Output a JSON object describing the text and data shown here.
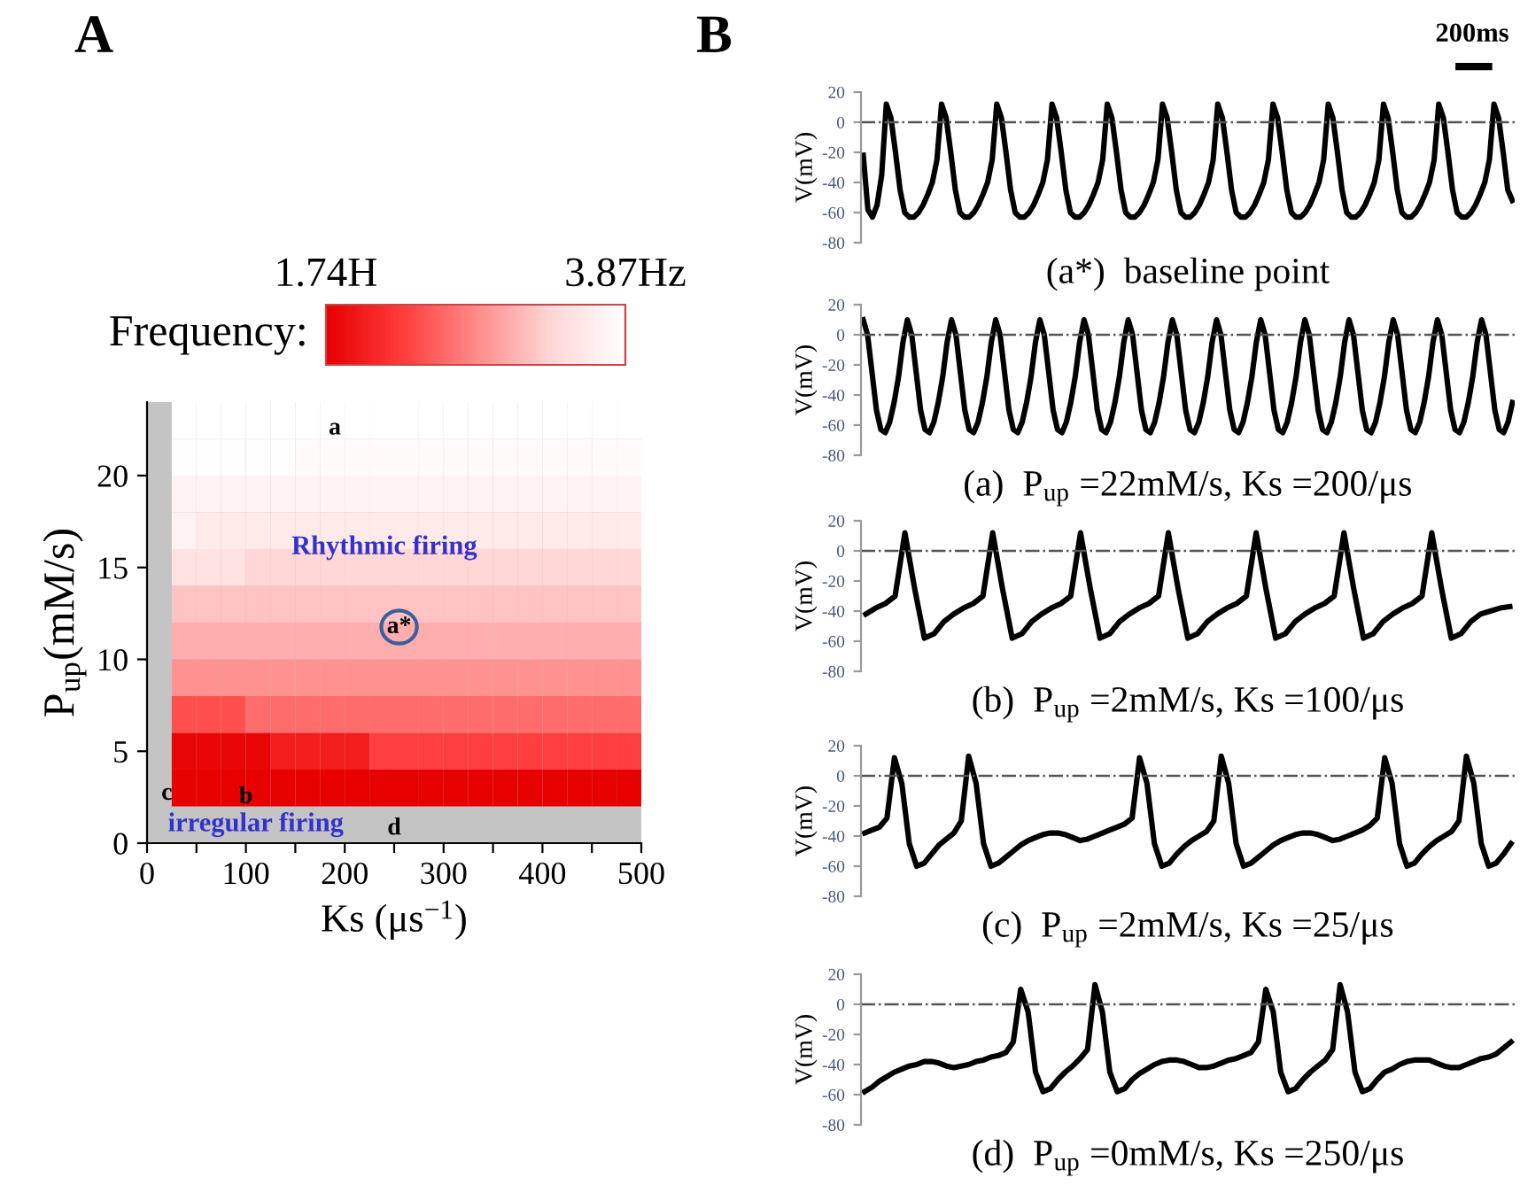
{
  "chart_data": [
    {
      "type": "heatmap",
      "title": "A",
      "xlabel": "Ks (μs$^{−1}$)",
      "ylabel": "P$_{up}$(mM/s)",
      "clabel": "Frequency:",
      "x": [
        37.5,
        62.5,
        87.5,
        112.5,
        137.5,
        162.5,
        187.5,
        212.5,
        237.5,
        262.5,
        287.5,
        312.5,
        337.5,
        362.5,
        387.5,
        412.5,
        437.5,
        462.5,
        487.5
      ],
      "y": [
        23,
        21,
        19,
        17,
        15,
        13,
        11,
        9,
        7,
        5,
        3
      ],
      "cells": [
        [
          3.87,
          3.87,
          3.87,
          3.87,
          3.87,
          3.87,
          3.87,
          3.87,
          3.87,
          3.87,
          3.87,
          3.87,
          3.87,
          3.87,
          3.87,
          3.87,
          3.87,
          3.87,
          3.87
        ],
        [
          3.85,
          3.85,
          3.85,
          3.85,
          3.85,
          3.82,
          3.82,
          3.82,
          3.82,
          3.82,
          3.82,
          3.82,
          3.82,
          3.82,
          3.82,
          3.82,
          3.82,
          3.82,
          3.82
        ],
        [
          3.72,
          3.72,
          3.72,
          3.72,
          3.72,
          3.72,
          3.72,
          3.72,
          3.72,
          3.72,
          3.72,
          3.72,
          3.72,
          3.72,
          3.72,
          3.72,
          3.72,
          3.72,
          3.72
        ],
        [
          3.7,
          3.6,
          3.6,
          3.6,
          3.6,
          3.6,
          3.6,
          3.6,
          3.6,
          3.6,
          3.6,
          3.6,
          3.6,
          3.6,
          3.6,
          3.6,
          3.6,
          3.6,
          3.6
        ],
        [
          3.5,
          3.5,
          3.5,
          3.35,
          3.35,
          3.35,
          3.35,
          3.35,
          3.35,
          3.35,
          3.35,
          3.35,
          3.35,
          3.35,
          3.35,
          3.35,
          3.35,
          3.35,
          3.35
        ],
        [
          3.2,
          3.2,
          3.2,
          3.2,
          3.2,
          3.2,
          3.2,
          3.2,
          3.2,
          3.2,
          3.2,
          3.2,
          3.2,
          3.2,
          3.2,
          3.2,
          3.2,
          3.2,
          3.2
        ],
        [
          3.05,
          3.05,
          3.05,
          3.05,
          3.05,
          3.05,
          3.05,
          3.05,
          3.05,
          3.05,
          3.05,
          3.05,
          3.05,
          3.05,
          3.05,
          3.05,
          3.05,
          3.05,
          3.05
        ],
        [
          2.85,
          2.85,
          2.85,
          2.85,
          2.85,
          2.85,
          2.85,
          2.85,
          2.85,
          2.85,
          2.85,
          2.85,
          2.85,
          2.85,
          2.85,
          2.85,
          2.85,
          2.85,
          2.85
        ],
        [
          2.4,
          2.4,
          2.4,
          2.6,
          2.6,
          2.6,
          2.6,
          2.6,
          2.6,
          2.6,
          2.6,
          2.6,
          2.6,
          2.6,
          2.6,
          2.6,
          2.6,
          2.6,
          2.6
        ],
        [
          1.8,
          1.8,
          1.8,
          1.8,
          2.0,
          2.0,
          2.0,
          2.0,
          2.3,
          2.3,
          2.3,
          2.3,
          2.3,
          2.3,
          2.3,
          2.3,
          2.3,
          2.3,
          2.3
        ],
        [
          1.76,
          1.74,
          1.74,
          1.74,
          1.74,
          1.74,
          1.74,
          1.74,
          1.74,
          1.74,
          1.74,
          1.74,
          1.74,
          1.74,
          1.74,
          1.74,
          1.74,
          1.74,
          1.74
        ]
      ],
      "clim": [
        1.74,
        3.87
      ],
      "cticks": [
        {
          "value": 1.74,
          "label": "1.74H"
        },
        {
          "value": 3.87,
          "label": "3.87Hz"
        }
      ],
      "xlim": [
        0,
        500
      ],
      "ylim": [
        0,
        24
      ],
      "xticks": [
        0,
        {
          "value": 50,
          "label": null
        },
        100,
        {
          "value": 150,
          "label": null
        },
        200,
        {
          "value": 250,
          "label": null
        },
        300,
        {
          "value": 350,
          "label": null
        },
        400,
        {
          "value": 450,
          "label": null
        },
        500
      ],
      "yticks": [
        0,
        5,
        10,
        15,
        20
      ],
      "annotations": [
        "a",
        "Rhythmic firing",
        "a*",
        "b",
        "c",
        "irregular firing",
        "d"
      ]
    },
    {
      "type": "line",
      "title": "B",
      "ylabel": "V(mV)",
      "xlabel": "(a*)  baseline point",
      "tick_labels": "y",
      "annotations": [
        "200ms"
      ],
      "ylim": [
        -80,
        20
      ],
      "yticks": [
        -80,
        -60,
        -40,
        -20,
        0,
        20
      ],
      "ref_lines": [
        {
          "axis": "y",
          "value": 0,
          "line_style": "dashdot"
        }
      ],
      "categories": [
        null,
        null,
        null,
        null,
        null,
        null,
        null,
        null,
        null,
        null,
        null,
        null,
        null,
        null,
        null,
        null,
        null,
        null,
        null,
        null,
        null,
        null,
        null,
        null,
        null,
        null,
        null,
        null,
        null,
        null,
        null,
        null,
        null,
        null,
        null,
        null,
        null,
        null,
        null,
        null,
        null,
        null,
        null,
        null,
        null,
        null,
        null,
        null,
        null,
        null,
        null,
        null,
        null,
        null,
        null,
        null,
        null,
        null,
        null,
        null,
        null,
        null,
        null,
        null,
        null,
        null,
        null,
        null,
        null,
        null,
        null,
        null,
        null,
        null,
        null,
        null,
        null,
        null,
        null,
        null,
        null,
        null,
        null,
        null,
        null,
        null,
        null,
        null,
        null,
        null,
        null,
        null,
        null,
        null,
        null,
        null,
        null,
        null,
        null,
        null,
        null,
        null,
        null,
        null,
        null,
        null,
        null,
        null,
        null,
        null,
        null,
        null,
        null,
        null,
        null,
        null,
        null,
        null,
        null,
        null,
        null,
        null,
        null,
        null,
        null,
        null,
        null,
        null,
        null,
        null,
        null,
        null,
        null,
        null,
        null,
        null,
        null,
        null,
        null,
        null,
        null,
        null
      ],
      "series": [
        {
          "color": "#000000",
          "values": [
            -22,
            -58,
            -63,
            -55,
            -35,
            12,
            3,
            -20,
            -45,
            -60,
            -63,
            -63,
            -60,
            -55,
            -48,
            -40,
            -25,
            12,
            3,
            -20,
            -45,
            -60,
            -63,
            -63,
            -60,
            -55,
            -48,
            -40,
            -25,
            12,
            3,
            -20,
            -45,
            -60,
            -63,
            -63,
            -60,
            -55,
            -48,
            -40,
            -25,
            12,
            3,
            -20,
            -45,
            -60,
            -63,
            -63,
            -60,
            -55,
            -48,
            -40,
            -25,
            12,
            3,
            -20,
            -45,
            -60,
            -63,
            -63,
            -60,
            -55,
            -48,
            -40,
            -25,
            12,
            3,
            -20,
            -45,
            -60,
            -63,
            -63,
            -60,
            -55,
            -48,
            -40,
            -25,
            12,
            3,
            -20,
            -45,
            -60,
            -63,
            -63,
            -60,
            -55,
            -48,
            -40,
            -25,
            12,
            3,
            -20,
            -45,
            -60,
            -63,
            -63,
            -60,
            -55,
            -48,
            -40,
            -25,
            12,
            3,
            -20,
            -45,
            -60,
            -63,
            -63,
            -60,
            -55,
            -48,
            -40,
            -25,
            12,
            3,
            -20,
            -45,
            -60,
            -63,
            -63,
            -60,
            -55,
            -48,
            -40,
            -25,
            12,
            3,
            -20,
            -45,
            -60,
            -63,
            -63,
            -60,
            -55,
            -48,
            -40,
            -25,
            12,
            3,
            -20,
            -45,
            -52
          ]
        }
      ]
    },
    {
      "type": "line",
      "ylabel": "V(mV)",
      "xlabel": "(a)  P$_{up}$ =22mM/s, Ks =200/μs",
      "tick_labels": "y",
      "ylim": [
        -80,
        20
      ],
      "yticks": [
        -80,
        -60,
        -40,
        -20,
        0,
        20
      ],
      "ref_lines": [
        {
          "axis": "y",
          "value": 0,
          "line_style": "dashdot"
        }
      ],
      "categories": [
        null,
        null,
        null,
        null,
        null,
        null,
        null,
        null,
        null,
        null,
        null,
        null,
        null,
        null,
        null,
        null,
        null,
        null,
        null,
        null,
        null,
        null,
        null,
        null,
        null,
        null,
        null,
        null,
        null,
        null,
        null,
        null,
        null,
        null,
        null,
        null,
        null,
        null,
        null,
        null,
        null,
        null,
        null,
        null,
        null,
        null,
        null,
        null,
        null,
        null,
        null,
        null,
        null,
        null,
        null,
        null,
        null,
        null,
        null,
        null,
        null,
        null,
        null,
        null,
        null,
        null,
        null,
        null,
        null,
        null,
        null,
        null,
        null,
        null,
        null,
        null,
        null,
        null,
        null,
        null,
        null,
        null,
        null,
        null,
        null,
        null,
        null,
        null,
        null,
        null,
        null,
        null,
        null,
        null,
        null,
        null,
        null,
        null,
        null,
        null,
        null,
        null,
        null,
        null,
        null,
        null,
        null,
        null,
        null,
        null,
        null,
        null,
        null,
        null,
        null,
        null,
        null,
        null,
        null,
        null,
        null,
        null,
        null,
        null,
        null,
        null,
        null,
        null,
        null,
        null,
        null,
        null,
        null,
        null,
        null,
        null,
        null,
        null,
        null,
        null,
        null,
        null,
        null,
        null,
        null,
        null,
        null,
        null
      ],
      "series": [
        {
          "color": "#000000",
          "values": [
            10,
            0,
            -25,
            -50,
            -63,
            -65,
            -58,
            -45,
            -28,
            -5,
            10,
            0,
            -25,
            -50,
            -63,
            -65,
            -58,
            -45,
            -28,
            -5,
            10,
            0,
            -25,
            -50,
            -63,
            -65,
            -58,
            -45,
            -28,
            -5,
            10,
            0,
            -25,
            -50,
            -63,
            -65,
            -58,
            -45,
            -28,
            -5,
            10,
            0,
            -25,
            -50,
            -63,
            -65,
            -58,
            -45,
            -28,
            -5,
            10,
            0,
            -25,
            -50,
            -63,
            -65,
            -58,
            -45,
            -28,
            -5,
            10,
            0,
            -25,
            -50,
            -63,
            -65,
            -58,
            -45,
            -28,
            -5,
            10,
            0,
            -25,
            -50,
            -63,
            -65,
            -58,
            -45,
            -28,
            -5,
            10,
            0,
            -25,
            -50,
            -63,
            -65,
            -58,
            -45,
            -28,
            -5,
            10,
            0,
            -25,
            -50,
            -63,
            -65,
            -58,
            -45,
            -28,
            -5,
            10,
            0,
            -25,
            -50,
            -63,
            -65,
            -58,
            -45,
            -28,
            -5,
            10,
            0,
            -25,
            -50,
            -63,
            -65,
            -58,
            -45,
            -28,
            -5,
            10,
            0,
            -25,
            -50,
            -63,
            -65,
            -58,
            -45,
            -28,
            -5,
            10,
            0,
            -25,
            -50,
            -63,
            -65,
            -58,
            -45,
            -28,
            -5,
            10,
            0,
            -25,
            -50,
            -63,
            -65,
            -58,
            -45
          ]
        }
      ]
    },
    {
      "type": "line",
      "ylabel": "V(mV)",
      "xlabel": "(b)  P$_{up}$ =2mM/s, Ks =100/μs",
      "tick_labels": "y",
      "ylim": [
        -80,
        20
      ],
      "yticks": [
        -80,
        -60,
        -40,
        -20,
        0,
        20
      ],
      "ref_lines": [
        {
          "axis": "y",
          "value": 0,
          "line_style": "dashdot"
        }
      ],
      "categories": [
        null,
        null,
        null,
        null,
        null,
        null,
        null,
        null,
        null,
        null,
        null,
        null,
        null,
        null,
        null,
        null,
        null,
        null,
        null,
        null,
        null,
        null,
        null,
        null,
        null,
        null,
        null,
        null,
        null,
        null,
        null,
        null,
        null,
        null,
        null,
        null,
        null,
        null,
        null,
        null,
        null,
        null,
        null,
        null,
        null,
        null,
        null,
        null,
        null,
        null,
        null,
        null,
        null,
        null,
        null,
        null,
        null,
        null,
        null,
        null,
        null,
        null,
        null,
        null,
        null,
        null,
        null
      ],
      "series": [
        {
          "color": "#000000",
          "values": [
            -42,
            -38,
            -35,
            -30,
            12,
            -25,
            -58,
            -55,
            -47,
            -42,
            -38,
            -35,
            -30,
            12,
            -25,
            -58,
            -55,
            -47,
            -42,
            -38,
            -35,
            -30,
            12,
            -25,
            -58,
            -55,
            -47,
            -42,
            -38,
            -35,
            -30,
            12,
            -25,
            -58,
            -55,
            -47,
            -42,
            -38,
            -35,
            -30,
            12,
            -25,
            -58,
            -55,
            -47,
            -42,
            -38,
            -35,
            -30,
            12,
            -25,
            -58,
            -55,
            -47,
            -42,
            -38,
            -35,
            -30,
            12,
            -25,
            -58,
            -55,
            -47,
            -42,
            -40,
            -38,
            -37
          ]
        }
      ]
    },
    {
      "type": "line",
      "ylabel": "V(mV)",
      "xlabel": "(c)  P$_{up}$ =2mM/s, Ks =25/μs",
      "tick_labels": "y",
      "ylim": [
        -80,
        20
      ],
      "yticks": [
        -80,
        -60,
        -40,
        -20,
        0,
        20
      ],
      "ref_lines": [
        {
          "axis": "y",
          "value": 0,
          "line_style": "dashdot"
        }
      ],
      "categories": [
        null,
        null,
        null,
        null,
        null,
        null,
        null,
        null,
        null,
        null,
        null,
        null,
        null,
        null,
        null,
        null,
        null,
        null,
        null,
        null,
        null,
        null,
        null,
        null,
        null,
        null,
        null,
        null,
        null,
        null,
        null,
        null,
        null,
        null,
        null,
        null,
        null,
        null,
        null,
        null,
        null,
        null,
        null,
        null,
        null,
        null,
        null,
        null,
        null,
        null,
        null,
        null,
        null,
        null,
        null,
        null,
        null,
        null,
        null,
        null,
        null,
        null,
        null,
        null,
        null,
        null,
        null,
        null,
        null,
        null,
        null,
        null,
        null,
        null,
        null,
        null,
        null,
        null,
        null,
        null,
        null,
        null,
        null,
        null,
        null,
        null,
        null,
        null
      ],
      "series": [
        {
          "color": "#000000",
          "values": [
            -38,
            -36,
            -34,
            -28,
            12,
            -5,
            -45,
            -60,
            -58,
            -52,
            -46,
            -42,
            -38,
            -30,
            13,
            -5,
            -45,
            -60,
            -58,
            -54,
            -50,
            -46,
            -43,
            -41,
            -39,
            -38,
            -38,
            -39,
            -41,
            -43,
            -42,
            -40,
            -38,
            -36,
            -34,
            -32,
            -28,
            12,
            -5,
            -45,
            -60,
            -58,
            -52,
            -47,
            -43,
            -40,
            -37,
            -30,
            13,
            -5,
            -45,
            -60,
            -58,
            -54,
            -50,
            -46,
            -43,
            -41,
            -39,
            -38,
            -38,
            -39,
            -41,
            -43,
            -42,
            -40,
            -38,
            -36,
            -33,
            -28,
            12,
            -5,
            -45,
            -60,
            -58,
            -52,
            -47,
            -43,
            -40,
            -37,
            -30,
            13,
            -5,
            -45,
            -60,
            -58,
            -52,
            -45
          ]
        }
      ]
    },
    {
      "type": "line",
      "ylabel": "V(mV)",
      "xlabel": "(d)  P$_{up}$ =0mM/s, Ks =250/μs",
      "tick_labels": "y",
      "ylim": [
        -80,
        20
      ],
      "yticks": [
        -80,
        -60,
        -40,
        -20,
        0,
        20
      ],
      "ref_lines": [
        {
          "axis": "y",
          "value": 0,
          "line_style": "dashdot"
        }
      ],
      "categories": [
        null,
        null,
        null,
        null,
        null,
        null,
        null,
        null,
        null,
        null,
        null,
        null,
        null,
        null,
        null,
        null,
        null,
        null,
        null,
        null,
        null,
        null,
        null,
        null,
        null,
        null,
        null,
        null,
        null,
        null,
        null,
        null,
        null,
        null,
        null,
        null,
        null,
        null,
        null,
        null,
        null,
        null,
        null,
        null,
        null,
        null,
        null,
        null,
        null,
        null,
        null,
        null,
        null,
        null,
        null,
        null,
        null,
        null,
        null,
        null,
        null,
        null,
        null,
        null,
        null,
        null,
        null,
        null,
        null,
        null,
        null,
        null,
        null,
        null,
        null,
        null,
        null,
        null,
        null,
        null,
        null,
        null,
        null,
        null,
        null,
        null,
        null,
        null
      ],
      "series": [
        {
          "color": "#000000",
          "values": [
            -58,
            -55,
            -51,
            -48,
            -45,
            -43,
            -41,
            -40,
            -38,
            -38,
            -39,
            -41,
            -42,
            -41,
            -40,
            -38,
            -37,
            -35,
            -34,
            -32,
            -25,
            10,
            -5,
            -45,
            -58,
            -56,
            -50,
            -45,
            -41,
            -36,
            -30,
            13,
            -5,
            -45,
            -58,
            -56,
            -50,
            -46,
            -43,
            -40,
            -38,
            -37,
            -37,
            -38,
            -40,
            -42,
            -42,
            -41,
            -39,
            -37,
            -36,
            -34,
            -32,
            -25,
            10,
            -5,
            -45,
            -58,
            -56,
            -50,
            -45,
            -41,
            -37,
            -30,
            13,
            -5,
            -45,
            -58,
            -56,
            -50,
            -45,
            -43,
            -40,
            -38,
            -37,
            -37,
            -37,
            -39,
            -41,
            -42,
            -42,
            -40,
            -38,
            -36,
            -35,
            -33,
            -29,
            -25
          ]
        }
      ]
    }
  ]
}
